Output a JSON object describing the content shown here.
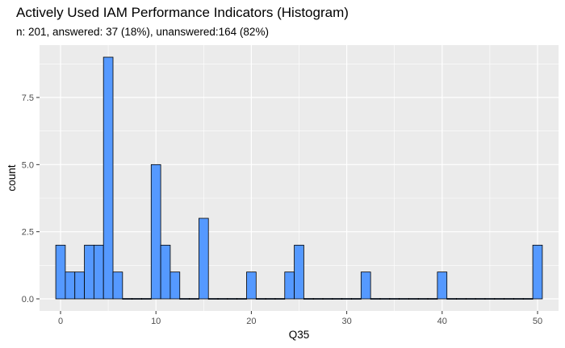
{
  "chart_data": {
    "type": "bar",
    "title": "Actively Used IAM Performance Indicators (Histogram)",
    "subtitle": "n: 201, answered: 37 (18%), unanswered:164 (82%)",
    "xlabel": "Q35",
    "ylabel": "count",
    "xlim": [
      -2.2,
      52.2
    ],
    "ylim": [
      -0.45,
      9.45
    ],
    "x_ticks": [
      0,
      10,
      20,
      30,
      40,
      50
    ],
    "y_ticks": [
      0.0,
      2.5,
      5.0,
      7.5
    ],
    "y_tick_labels": [
      "0.0",
      "2.5",
      "5.0",
      "7.5"
    ],
    "bin_width": 1,
    "x": [
      0,
      1,
      2,
      3,
      4,
      5,
      6,
      7,
      8,
      9,
      10,
      11,
      12,
      13,
      14,
      15,
      16,
      17,
      18,
      19,
      20,
      21,
      22,
      23,
      24,
      25,
      26,
      27,
      28,
      29,
      30,
      31,
      32,
      33,
      34,
      35,
      36,
      37,
      38,
      39,
      40,
      41,
      42,
      43,
      44,
      45,
      46,
      47,
      48,
      49,
      50
    ],
    "values": [
      2,
      1,
      1,
      2,
      2,
      9,
      1,
      0,
      0,
      0,
      5,
      2,
      1,
      0,
      0,
      3,
      0,
      0,
      0,
      0,
      1,
      0,
      0,
      0,
      1,
      2,
      0,
      0,
      0,
      0,
      0,
      0,
      1,
      0,
      0,
      0,
      0,
      0,
      0,
      0,
      1,
      0,
      0,
      0,
      0,
      0,
      0,
      0,
      0,
      0,
      2
    ],
    "grid": true,
    "colors": {
      "bar_fill": "#5599FF",
      "bar_stroke": "#000000",
      "panel": "#EBEBEB",
      "grid": "#FFFFFF"
    }
  }
}
